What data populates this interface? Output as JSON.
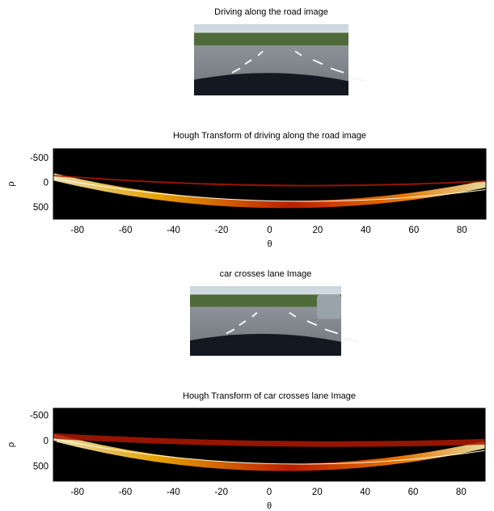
{
  "chart_data": [
    {
      "type": "image",
      "title": "Driving along the road image"
    },
    {
      "type": "heatmap",
      "title": "Hough Transform of driving along the road image",
      "xlabel": "θ",
      "ylabel": "ρ",
      "xlim": [
        -90,
        90
      ],
      "xticks": [
        -80,
        -60,
        -40,
        -20,
        0,
        20,
        40,
        60,
        80
      ],
      "ylim": [
        -700,
        730
      ],
      "yticks": [
        -500,
        0,
        500
      ]
    },
    {
      "type": "image",
      "title": "car crosses lane Image"
    },
    {
      "type": "heatmap",
      "title": "Hough Transform of car crosses lane Image",
      "xlabel": "θ",
      "ylabel": "ρ",
      "xlim": [
        -90,
        90
      ],
      "xticks": [
        -80,
        -60,
        -40,
        -20,
        0,
        20,
        40,
        60,
        80
      ],
      "ylim": [
        -650,
        780
      ],
      "yticks": [
        -500,
        0,
        500
      ]
    }
  ]
}
